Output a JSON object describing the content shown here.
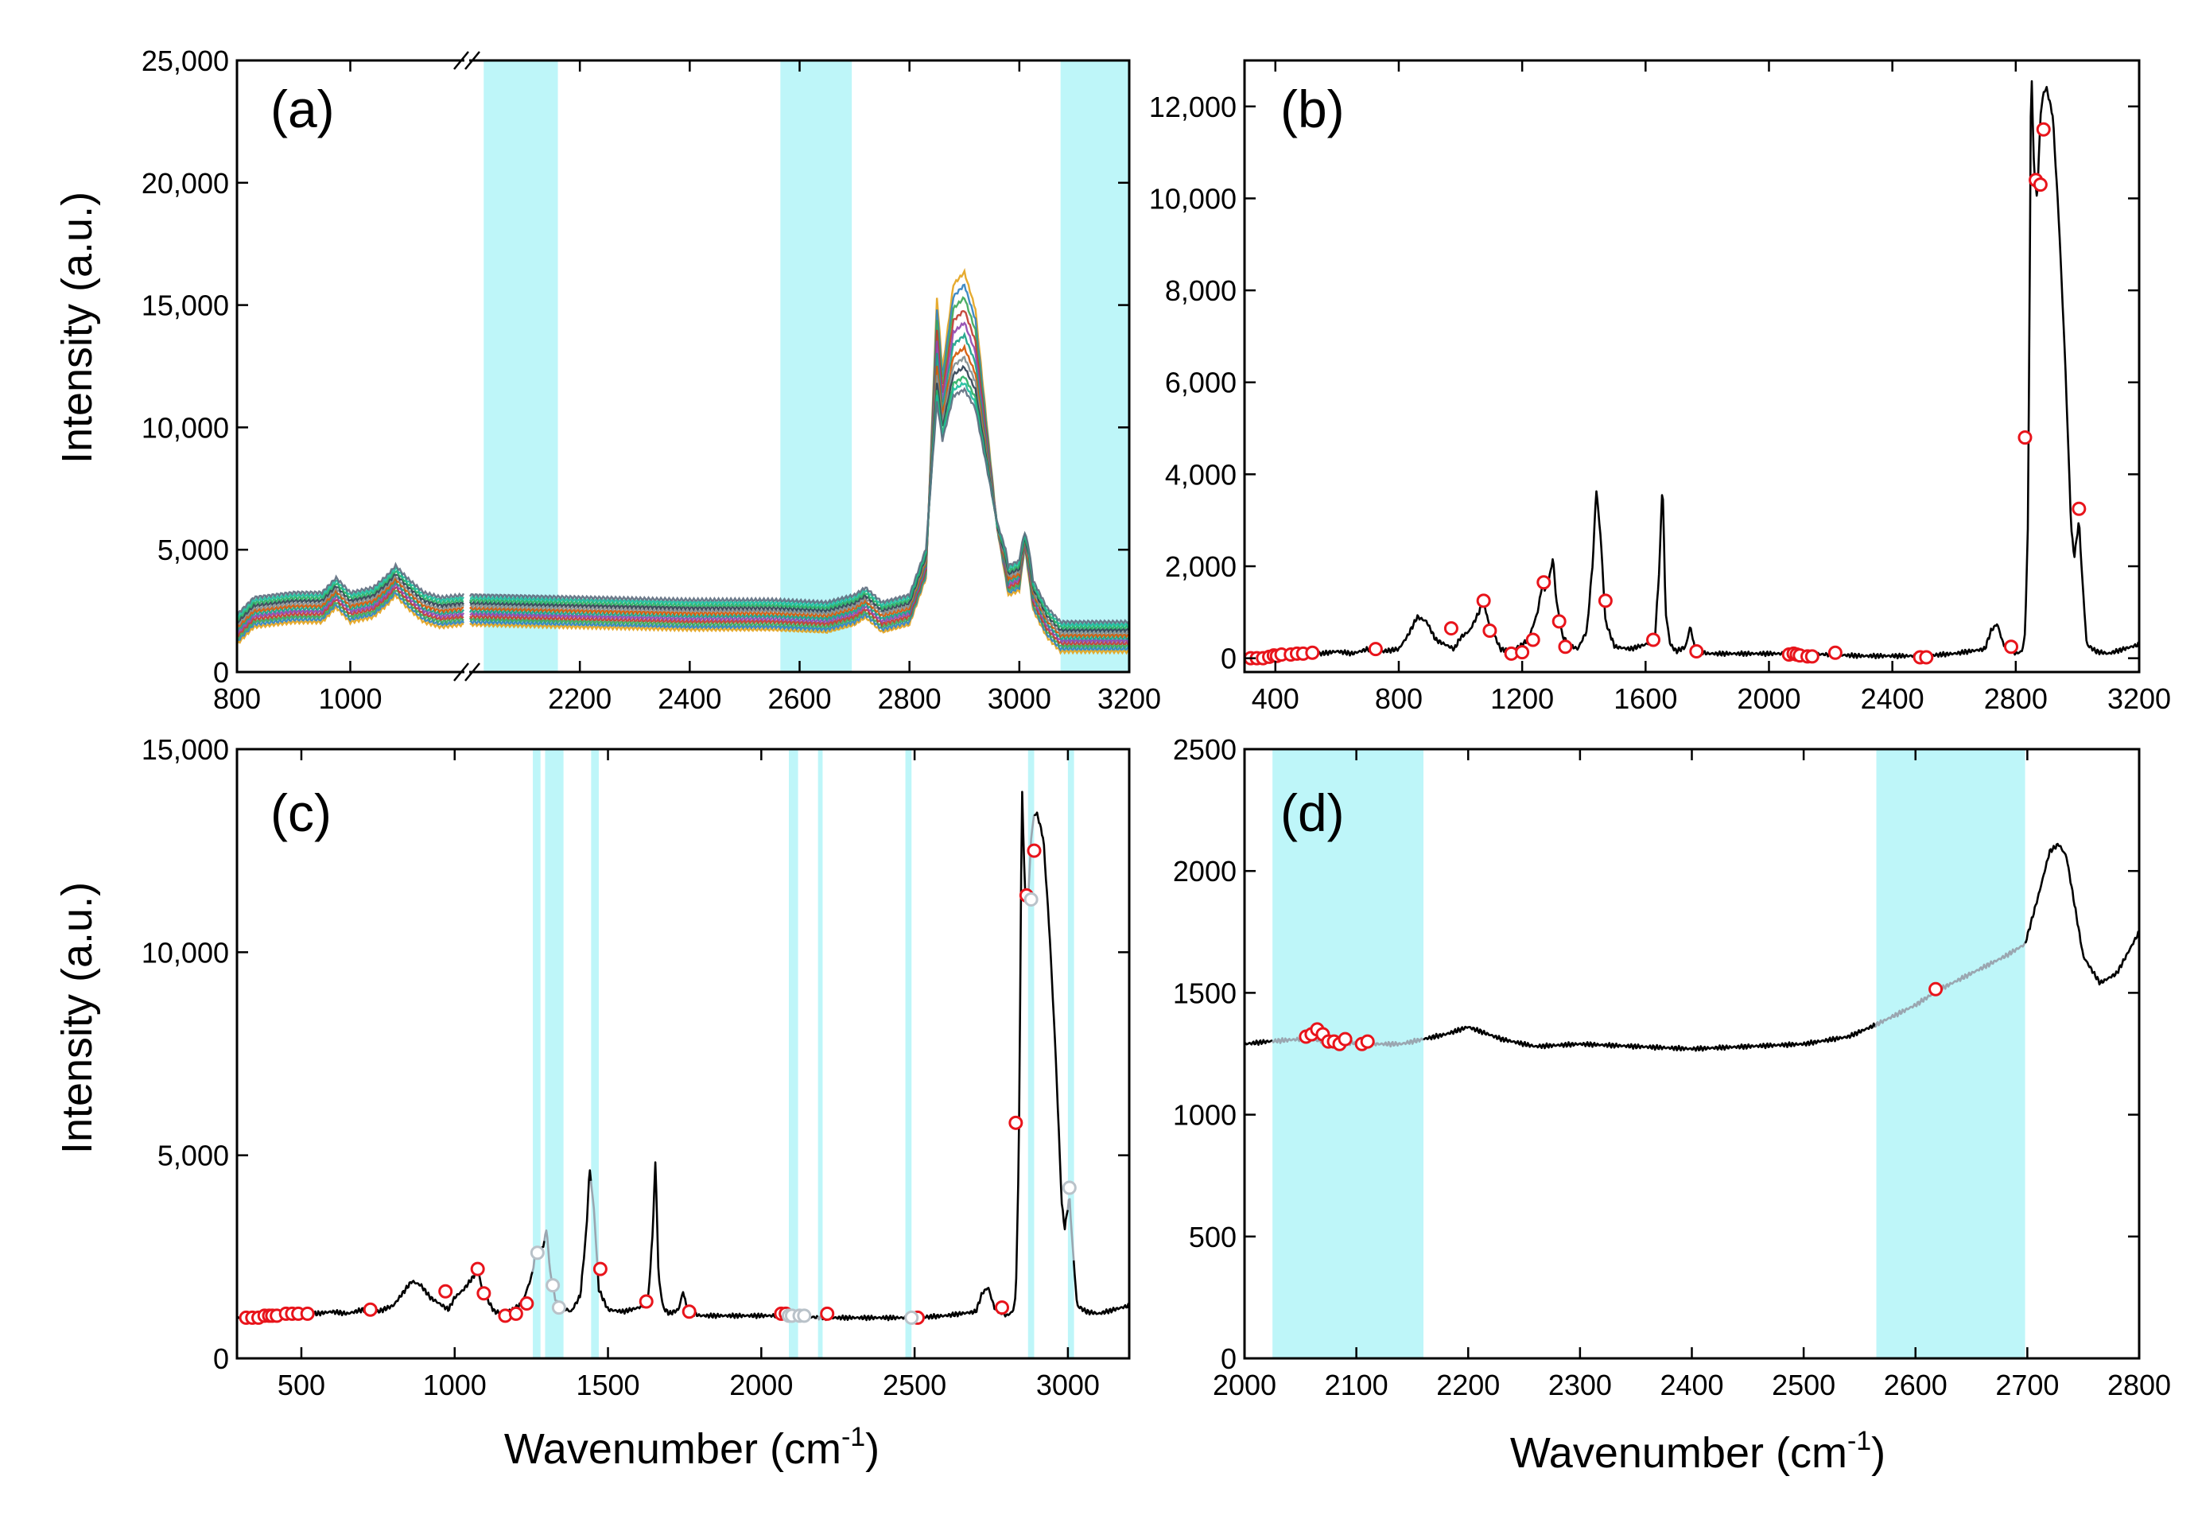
{
  "figure": {
    "ylabel": "Intensity (a.u.)",
    "xlabel": "Wavenumber (cm",
    "xlabel_sup": "-1",
    "xlabel_close": ")"
  },
  "colors": {
    "band": "#b3f5f8",
    "spectrum": "#000000",
    "marker": "#e8141b",
    "masked": "#9aa6b0"
  },
  "chart_data": [
    {
      "panel": "(a)",
      "type": "line",
      "description": "overlay of many Raman spectra, broken x-axis",
      "x_segments": [
        [
          800,
          1200
        ],
        [
          2000,
          3200
        ]
      ],
      "xticks": [
        800,
        1000,
        2200,
        2400,
        2600,
        2800,
        3000,
        3200
      ],
      "xtick_labels": [
        "800",
        "1000",
        "2200",
        "2400",
        "2600",
        "2800",
        "3000",
        "3200"
      ],
      "ylim": [
        0,
        25000
      ],
      "yticks": [
        0,
        5000,
        10000,
        15000,
        20000,
        25000
      ],
      "ytick_labels": [
        "0",
        "5,000",
        "10,000",
        "15,000",
        "20,000",
        "25,000"
      ],
      "shaded_bands": [
        [
          2025,
          2160
        ],
        [
          2565,
          2695
        ],
        [
          3075,
          3200
        ]
      ],
      "series_count": 12,
      "peak_scale": [
        1.0,
        0.95,
        0.9,
        0.85,
        0.8,
        0.75,
        0.7,
        0.66,
        0.62,
        0.58,
        0.55,
        0.52
      ],
      "profile": {
        "x": [
          800,
          830,
          900,
          950,
          975,
          1000,
          1040,
          1065,
          1080,
          1100,
          1130,
          1160,
          1200,
          2000,
          2100,
          2200,
          2400,
          2550,
          2650,
          2700,
          2720,
          2750,
          2800,
          2830,
          2850,
          2860,
          2880,
          2900,
          2920,
          2940,
          2960,
          2980,
          3000,
          3010,
          3025,
          3050,
          3075,
          3200
        ],
        "y": [
          1800,
          2500,
          2700,
          2700,
          3300,
          2700,
          2900,
          3400,
          3800,
          3300,
          2700,
          2500,
          2600,
          2600,
          2550,
          2500,
          2400,
          2400,
          2300,
          2600,
          2900,
          2300,
          2600,
          4500,
          16000,
          13000,
          16500,
          17000,
          15500,
          11000,
          6500,
          3800,
          4000,
          5800,
          3200,
          2100,
          1500,
          1500
        ]
      }
    },
    {
      "panel": "(b)",
      "type": "line",
      "xlim": [
        300,
        3200
      ],
      "xticks": [
        400,
        800,
        1200,
        1600,
        2000,
        2400,
        2800,
        3200
      ],
      "xtick_labels": [
        "400",
        "800",
        "1200",
        "1600",
        "2000",
        "2400",
        "2800",
        "3200"
      ],
      "ylim": [
        -300,
        13000
      ],
      "yticks": [
        0,
        2000,
        4000,
        6000,
        8000,
        10000,
        12000
      ],
      "ytick_labels": [
        "0",
        "2,000",
        "4,000",
        "6,000",
        "8,000",
        "10,000",
        "12,000"
      ],
      "x": [
        300,
        350,
        400,
        450,
        500,
        550,
        600,
        650,
        700,
        750,
        800,
        830,
        860,
        890,
        920,
        950,
        980,
        1000,
        1030,
        1060,
        1075,
        1090,
        1110,
        1130,
        1160,
        1190,
        1220,
        1250,
        1265,
        1275,
        1290,
        1300,
        1310,
        1330,
        1350,
        1380,
        1410,
        1430,
        1440,
        1455,
        1470,
        1500,
        1550,
        1600,
        1630,
        1645,
        1655,
        1665,
        1680,
        1700,
        1730,
        1745,
        1760,
        1800,
        1900,
        2000,
        2100,
        2200,
        2300,
        2400,
        2500,
        2600,
        2700,
        2720,
        2740,
        2760,
        2800,
        2820,
        2830,
        2840,
        2850,
        2860,
        2870,
        2880,
        2890,
        2900,
        2920,
        2940,
        2960,
        2980,
        2990,
        3005,
        3015,
        3030,
        3060,
        3100,
        3150,
        3200
      ],
      "y": [
        50,
        60,
        80,
        60,
        150,
        100,
        150,
        100,
        200,
        150,
        200,
        500,
        900,
        800,
        400,
        300,
        200,
        450,
        600,
        1000,
        1250,
        800,
        500,
        200,
        150,
        250,
        400,
        1000,
        1600,
        1500,
        1800,
        2200,
        1300,
        500,
        300,
        200,
        600,
        2200,
        3700,
        2600,
        800,
        250,
        200,
        300,
        400,
        2000,
        3900,
        1000,
        300,
        150,
        250,
        700,
        200,
        100,
        100,
        100,
        100,
        80,
        50,
        50,
        50,
        100,
        200,
        600,
        750,
        300,
        100,
        150,
        500,
        3000,
        13000,
        10500,
        10000,
        11800,
        12300,
        12400,
        11800,
        9500,
        6500,
        2800,
        2200,
        3000,
        1800,
        300,
        150,
        100,
        200,
        300
      ],
      "markers": [
        [
          320,
          0
        ],
        [
          340,
          0
        ],
        [
          360,
          0
        ],
        [
          380,
          30
        ],
        [
          395,
          60
        ],
        [
          405,
          50
        ],
        [
          420,
          80
        ],
        [
          450,
          80
        ],
        [
          470,
          100
        ],
        [
          490,
          100
        ],
        [
          520,
          120
        ],
        [
          725,
          200
        ],
        [
          970,
          650
        ],
        [
          1075,
          1250
        ],
        [
          1095,
          600
        ],
        [
          1165,
          100
        ],
        [
          1200,
          130
        ],
        [
          1235,
          400
        ],
        [
          1270,
          1650
        ],
        [
          1320,
          800
        ],
        [
          1340,
          250
        ],
        [
          1470,
          1250
        ],
        [
          1625,
          400
        ],
        [
          1765,
          150
        ],
        [
          2065,
          80
        ],
        [
          2080,
          100
        ],
        [
          2090,
          80
        ],
        [
          2100,
          60
        ],
        [
          2125,
          40
        ],
        [
          2140,
          40
        ],
        [
          2215,
          120
        ],
        [
          2490,
          20
        ],
        [
          2510,
          20
        ],
        [
          2785,
          250
        ],
        [
          2830,
          4800
        ],
        [
          2865,
          10400
        ],
        [
          2880,
          10300
        ],
        [
          2890,
          11500
        ],
        [
          3005,
          3250
        ]
      ]
    },
    {
      "panel": "(c)",
      "type": "line",
      "xlim": [
        290,
        3200
      ],
      "xticks": [
        500,
        1000,
        1500,
        2000,
        2500,
        3000
      ],
      "xtick_labels": [
        "500",
        "1000",
        "1500",
        "2000",
        "2500",
        "3000"
      ],
      "ylim": [
        0,
        15000
      ],
      "yticks": [
        0,
        5000,
        10000,
        15000
      ],
      "ytick_labels": [
        "0",
        "5,000",
        "10,000",
        "15,000"
      ],
      "shaded_bands": [
        [
          1255,
          1280
        ],
        [
          1295,
          1355
        ],
        [
          1445,
          1470
        ],
        [
          2090,
          2120
        ],
        [
          2185,
          2200
        ],
        [
          2470,
          2490
        ],
        [
          2870,
          2890
        ],
        [
          3000,
          3020
        ]
      ],
      "x": [
        290,
        350,
        400,
        450,
        500,
        550,
        600,
        650,
        700,
        750,
        800,
        830,
        860,
        890,
        920,
        950,
        980,
        1000,
        1030,
        1060,
        1075,
        1090,
        1110,
        1130,
        1160,
        1190,
        1220,
        1250,
        1265,
        1275,
        1290,
        1300,
        1310,
        1330,
        1350,
        1380,
        1410,
        1430,
        1440,
        1455,
        1470,
        1500,
        1550,
        1600,
        1630,
        1645,
        1655,
        1665,
        1680,
        1700,
        1730,
        1745,
        1760,
        1800,
        1900,
        2000,
        2100,
        2200,
        2300,
        2400,
        2500,
        2600,
        2700,
        2720,
        2740,
        2760,
        2800,
        2820,
        2830,
        2840,
        2850,
        2860,
        2870,
        2880,
        2890,
        2900,
        2920,
        2940,
        2960,
        2980,
        2990,
        3005,
        3015,
        3030,
        3060,
        3100,
        3150,
        3200
      ],
      "y": [
        1000,
        1050,
        1050,
        1050,
        1150,
        1100,
        1150,
        1100,
        1200,
        1150,
        1300,
        1600,
        1900,
        1800,
        1500,
        1350,
        1200,
        1500,
        1700,
        2000,
        2200,
        1700,
        1400,
        1150,
        1100,
        1200,
        1350,
        2000,
        2600,
        2500,
        2800,
        3200,
        2200,
        1400,
        1250,
        1150,
        1550,
        3200,
        4700,
        3600,
        1700,
        1200,
        1150,
        1250,
        1350,
        3000,
        4900,
        2000,
        1250,
        1100,
        1200,
        1650,
        1150,
        1050,
        1050,
        1050,
        1050,
        1000,
        1000,
        1000,
        1000,
        1050,
        1150,
        1600,
        1750,
        1250,
        1050,
        1150,
        1500,
        5000,
        14100,
        11500,
        11200,
        12800,
        13400,
        13400,
        12800,
        10500,
        7500,
        3800,
        3200,
        4000,
        2800,
        1300,
        1150,
        1100,
        1200,
        1300
      ],
      "markers": [
        [
          320,
          1000
        ],
        [
          340,
          1000
        ],
        [
          360,
          1000
        ],
        [
          380,
          1050
        ],
        [
          395,
          1050
        ],
        [
          405,
          1050
        ],
        [
          420,
          1050
        ],
        [
          450,
          1100
        ],
        [
          470,
          1100
        ],
        [
          490,
          1100
        ],
        [
          520,
          1100
        ],
        [
          725,
          1200
        ],
        [
          970,
          1650
        ],
        [
          1075,
          2200
        ],
        [
          1095,
          1600
        ],
        [
          1165,
          1050
        ],
        [
          1200,
          1100
        ],
        [
          1235,
          1350
        ],
        [
          1475,
          2200
        ],
        [
          1625,
          1400
        ],
        [
          1765,
          1150
        ],
        [
          2065,
          1100
        ],
        [
          2080,
          1100
        ],
        [
          2215,
          1100
        ],
        [
          2510,
          1000
        ],
        [
          2785,
          1250
        ],
        [
          2830,
          5800
        ],
        [
          2865,
          11400
        ],
        [
          2890,
          12500
        ]
      ],
      "masked_markers": [
        [
          1270,
          2600
        ],
        [
          1320,
          1800
        ],
        [
          1340,
          1250
        ],
        [
          2090,
          1050
        ],
        [
          2100,
          1050
        ],
        [
          2125,
          1050
        ],
        [
          2140,
          1050
        ],
        [
          2490,
          1000
        ],
        [
          2880,
          11300
        ],
        [
          3005,
          4200
        ]
      ]
    },
    {
      "panel": "(d)",
      "type": "line",
      "xlim": [
        2000,
        2800
      ],
      "xticks": [
        2000,
        2100,
        2200,
        2300,
        2400,
        2500,
        2600,
        2700,
        2800
      ],
      "xtick_labels": [
        "2000",
        "2100",
        "2200",
        "2300",
        "2400",
        "2500",
        "2600",
        "2700",
        "2800"
      ],
      "ylim": [
        0,
        2500
      ],
      "yticks": [
        0,
        500,
        1000,
        1500,
        2000,
        2500
      ],
      "ytick_labels": [
        "0",
        "500",
        "1000",
        "1500",
        "2000",
        "2500"
      ],
      "shaded_bands": [
        [
          2025,
          2160
        ],
        [
          2565,
          2698
        ]
      ],
      "x": [
        2000,
        2020,
        2050,
        2080,
        2110,
        2140,
        2160,
        2180,
        2200,
        2230,
        2260,
        2300,
        2350,
        2400,
        2450,
        2500,
        2540,
        2565,
        2600,
        2620,
        2650,
        2680,
        2698,
        2710,
        2720,
        2728,
        2735,
        2750,
        2765,
        2780,
        2800
      ],
      "y": [
        1290,
        1300,
        1310,
        1300,
        1290,
        1290,
        1310,
        1330,
        1360,
        1310,
        1280,
        1290,
        1280,
        1270,
        1280,
        1290,
        1320,
        1370,
        1450,
        1510,
        1580,
        1650,
        1700,
        1900,
        2080,
        2110,
        2060,
        1650,
        1540,
        1580,
        1750
      ],
      "markers": [
        [
          2055,
          1320
        ],
        [
          2060,
          1330
        ],
        [
          2065,
          1350
        ],
        [
          2070,
          1330
        ],
        [
          2075,
          1300
        ],
        [
          2080,
          1300
        ],
        [
          2085,
          1290
        ],
        [
          2090,
          1310
        ],
        [
          2105,
          1290
        ],
        [
          2110,
          1300
        ],
        [
          2618,
          1515
        ]
      ]
    }
  ]
}
